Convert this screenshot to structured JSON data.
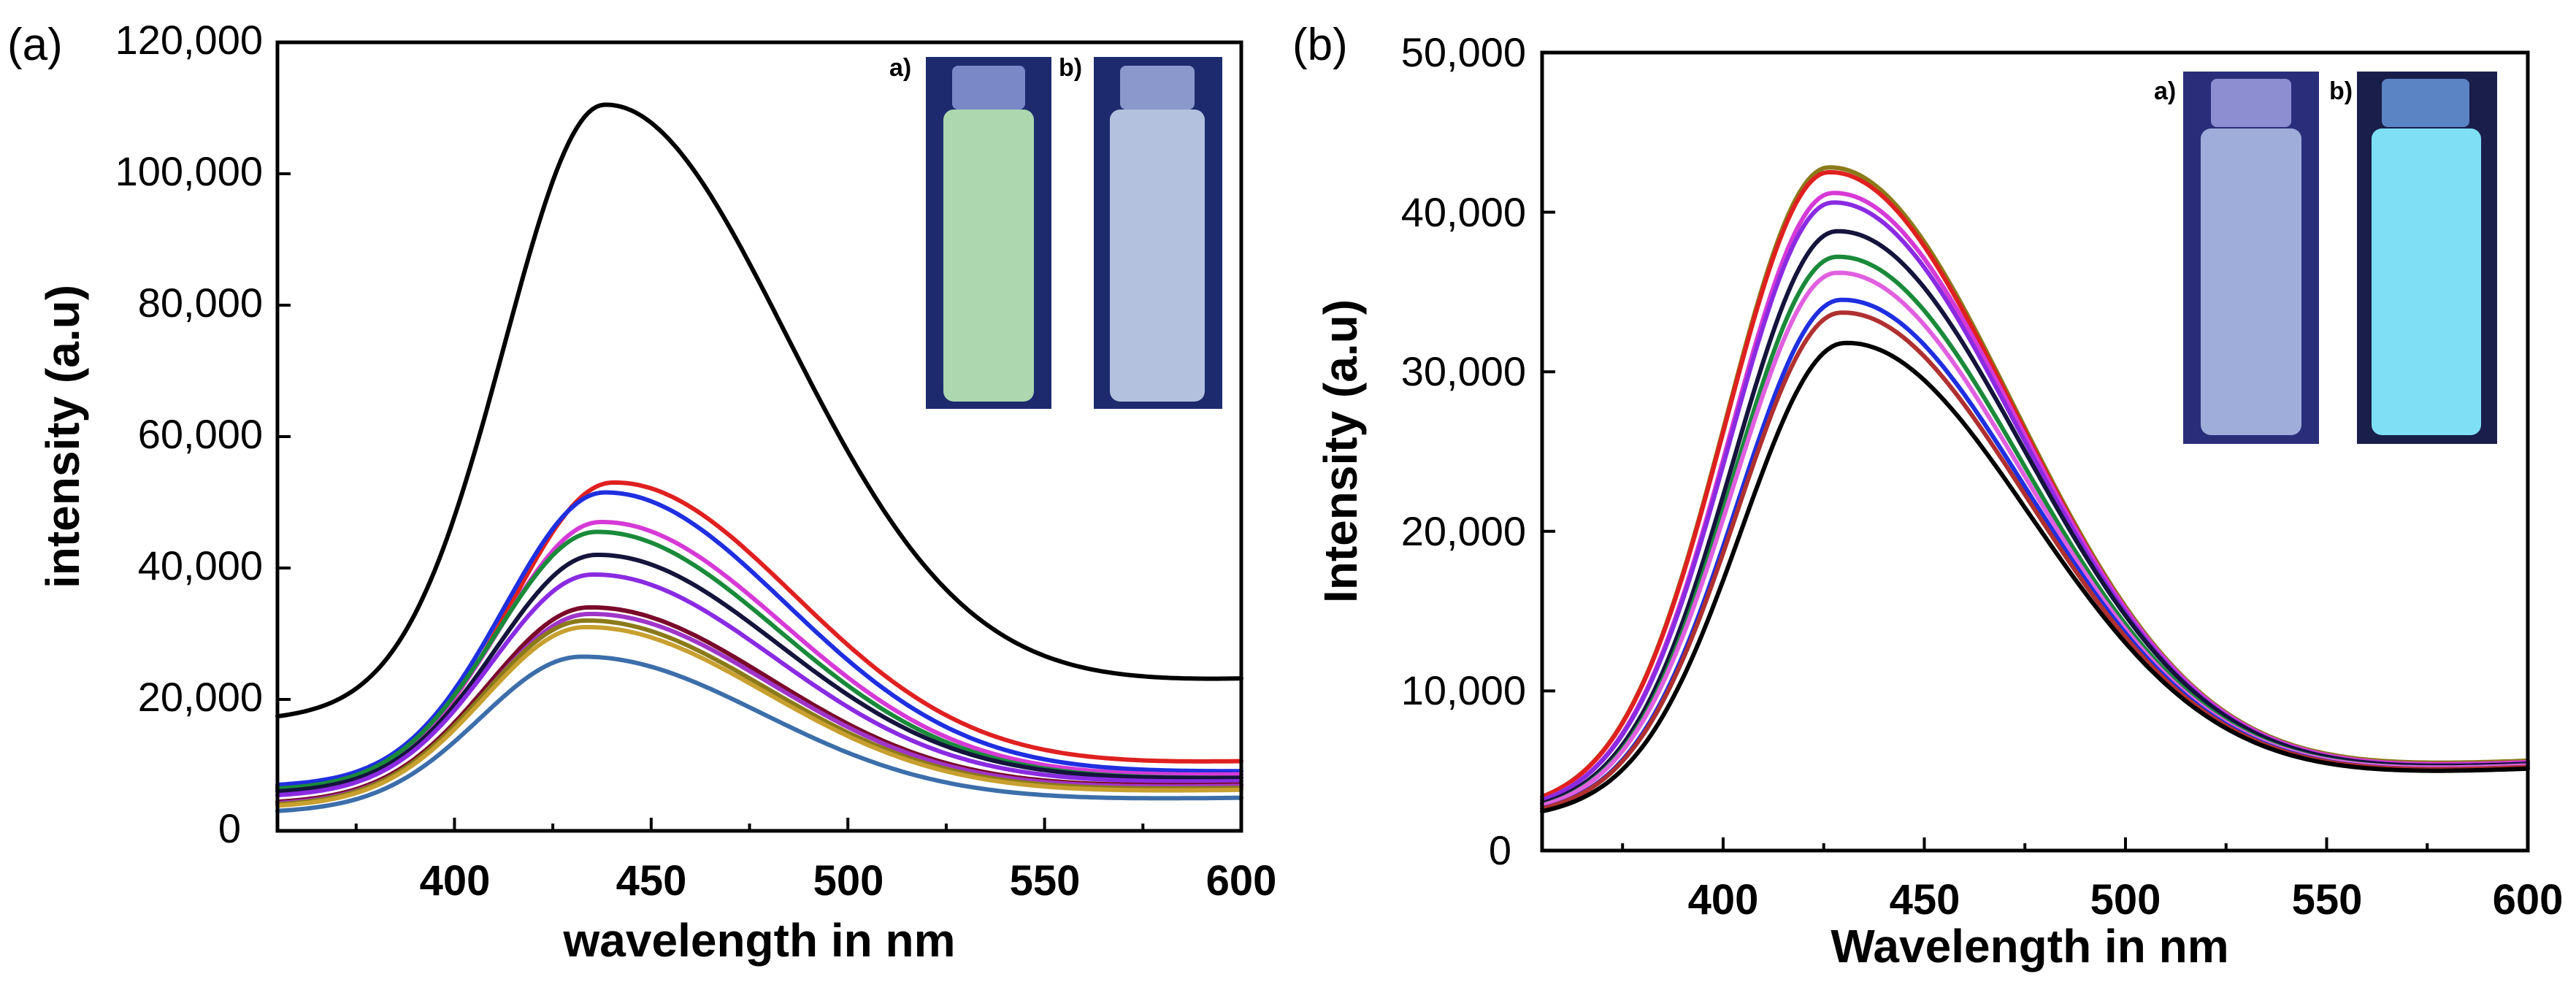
{
  "chart_data": [
    {
      "panel_label": "(a)",
      "type": "line",
      "xlabel": "wavelength in nm",
      "ylabel": "intensity (a.u)",
      "xlim": [
        355,
        600
      ],
      "ylim": [
        0,
        120000
      ],
      "x_ticks": [
        400,
        450,
        500,
        550,
        600
      ],
      "x_tick_labels": [
        "400",
        "450",
        "500",
        "550",
        "600"
      ],
      "y_ticks": [
        0,
        20000,
        40000,
        60000,
        80000,
        100000,
        120000
      ],
      "y_tick_labels": [
        "0",
        "20,000",
        "40,000",
        "60,000",
        "80,000",
        "100,000",
        "120,000"
      ],
      "inset_labels": [
        "a)",
        "b)"
      ],
      "series": [
        {
          "name": "black",
          "color": "#000000",
          "peak_x": 438,
          "peak_y": 110500,
          "y_start": 17000,
          "y_end": 23000
        },
        {
          "name": "red",
          "color": "#e02020",
          "peak_x": 440,
          "peak_y": 53000,
          "y_start": 6500,
          "y_end": 10500
        },
        {
          "name": "blue",
          "color": "#1f2fe0",
          "peak_x": 438,
          "peak_y": 51500,
          "y_start": 6800,
          "y_end": 9000
        },
        {
          "name": "magenta",
          "color": "#d63ad6",
          "peak_x": 437,
          "peak_y": 47000,
          "y_start": 6000,
          "y_end": 8500
        },
        {
          "name": "green",
          "color": "#1a8a3a",
          "peak_x": 436,
          "peak_y": 45500,
          "y_start": 6200,
          "y_end": 8000
        },
        {
          "name": "navy",
          "color": "#14143c",
          "peak_x": 436,
          "peak_y": 42000,
          "y_start": 5800,
          "y_end": 8000
        },
        {
          "name": "purple",
          "color": "#8a2be2",
          "peak_x": 435,
          "peak_y": 39000,
          "y_start": 5200,
          "y_end": 7500
        },
        {
          "name": "maroon",
          "color": "#7a0a2a",
          "peak_x": 434,
          "peak_y": 34000,
          "y_start": 4200,
          "y_end": 7000
        },
        {
          "name": "violet",
          "color": "#a035c8",
          "peak_x": 434,
          "peak_y": 33000,
          "y_start": 4000,
          "y_end": 6800
        },
        {
          "name": "olive",
          "color": "#8b7a1a",
          "peak_x": 433,
          "peak_y": 32000,
          "y_start": 3800,
          "y_end": 6500
        },
        {
          "name": "gold",
          "color": "#c8a030",
          "peak_x": 433,
          "peak_y": 31000,
          "y_start": 3600,
          "y_end": 6200
        },
        {
          "name": "steelblue",
          "color": "#3c6eaa",
          "peak_x": 432,
          "peak_y": 26500,
          "y_start": 2800,
          "y_end": 5000
        }
      ]
    },
    {
      "panel_label": "(b)",
      "type": "line",
      "xlabel": "Wavelength in nm",
      "ylabel": "Intensity (a.u)",
      "xlim": [
        355,
        600
      ],
      "ylim": [
        0,
        50000
      ],
      "x_ticks": [
        400,
        450,
        500,
        550,
        600
      ],
      "x_tick_labels": [
        "400",
        "450",
        "500",
        "550",
        "600"
      ],
      "y_ticks": [
        0,
        10000,
        20000,
        30000,
        40000,
        50000
      ],
      "y_tick_labels": [
        "0",
        "10,000",
        "20,000",
        "30,000",
        "40,000",
        "50,000"
      ],
      "inset_labels": [
        "a)",
        "b)"
      ],
      "series": [
        {
          "name": "olive",
          "color": "#8b7a1a",
          "peak_x": 426,
          "peak_y": 42800,
          "y_start": 2600,
          "y_end": 5600
        },
        {
          "name": "red",
          "color": "#e02020",
          "peak_x": 426,
          "peak_y": 42500,
          "y_start": 2600,
          "y_end": 5500
        },
        {
          "name": "magenta",
          "color": "#d63ad6",
          "peak_x": 427,
          "peak_y": 41200,
          "y_start": 2500,
          "y_end": 5500
        },
        {
          "name": "purple",
          "color": "#8a2be2",
          "peak_x": 427,
          "peak_y": 40600,
          "y_start": 2500,
          "y_end": 5400
        },
        {
          "name": "navy",
          "color": "#14143c",
          "peak_x": 428,
          "peak_y": 38800,
          "y_start": 2400,
          "y_end": 5400
        },
        {
          "name": "green",
          "color": "#1a8a3a",
          "peak_x": 428,
          "peak_y": 37200,
          "y_start": 2300,
          "y_end": 5300
        },
        {
          "name": "pink",
          "color": "#e060e0",
          "peak_x": 428,
          "peak_y": 36200,
          "y_start": 2300,
          "y_end": 5300
        },
        {
          "name": "blue",
          "color": "#1f2fe0",
          "peak_x": 429,
          "peak_y": 34500,
          "y_start": 2200,
          "y_end": 5200
        },
        {
          "name": "brown",
          "color": "#b03030",
          "peak_x": 429,
          "peak_y": 33700,
          "y_start": 2200,
          "y_end": 5200
        },
        {
          "name": "black",
          "color": "#000000",
          "peak_x": 430,
          "peak_y": 31800,
          "y_start": 2100,
          "y_end": 5100
        }
      ]
    }
  ]
}
